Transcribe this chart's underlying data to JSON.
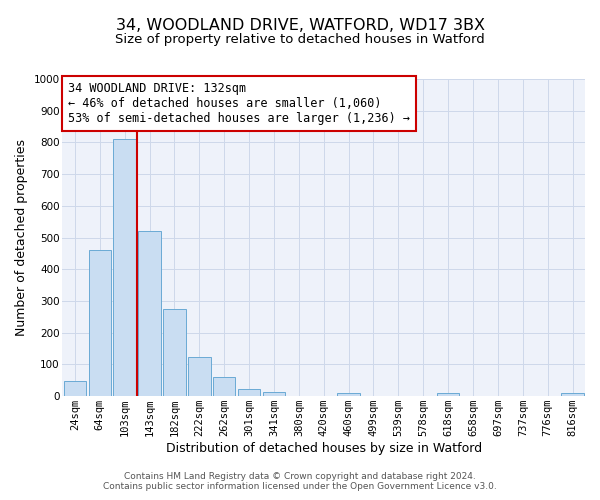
{
  "title": "34, WOODLAND DRIVE, WATFORD, WD17 3BX",
  "subtitle": "Size of property relative to detached houses in Watford",
  "xlabel": "Distribution of detached houses by size in Watford",
  "ylabel": "Number of detached properties",
  "bar_labels": [
    "24sqm",
    "64sqm",
    "103sqm",
    "143sqm",
    "182sqm",
    "222sqm",
    "262sqm",
    "301sqm",
    "341sqm",
    "380sqm",
    "420sqm",
    "460sqm",
    "499sqm",
    "539sqm",
    "578sqm",
    "618sqm",
    "658sqm",
    "697sqm",
    "737sqm",
    "776sqm",
    "816sqm"
  ],
  "bar_values": [
    47,
    460,
    810,
    520,
    275,
    125,
    60,
    22,
    12,
    0,
    0,
    10,
    0,
    0,
    0,
    10,
    0,
    0,
    0,
    0,
    10
  ],
  "bar_color": "#c9ddf2",
  "bar_edge_color": "#6aaad4",
  "grid_color": "#cdd8ea",
  "background_color": "#eef2fa",
  "vline_color": "#cc0000",
  "vline_pos": 2.5,
  "ylim": [
    0,
    1000
  ],
  "yticks": [
    0,
    100,
    200,
    300,
    400,
    500,
    600,
    700,
    800,
    900,
    1000
  ],
  "annotation_title": "34 WOODLAND DRIVE: 132sqm",
  "annotation_line1": "← 46% of detached houses are smaller (1,060)",
  "annotation_line2": "53% of semi-detached houses are larger (1,236) →",
  "footer_line1": "Contains HM Land Registry data © Crown copyright and database right 2024.",
  "footer_line2": "Contains public sector information licensed under the Open Government Licence v3.0.",
  "title_fontsize": 11.5,
  "subtitle_fontsize": 9.5,
  "axis_label_fontsize": 9,
  "tick_fontsize": 7.5,
  "annotation_fontsize": 8.5,
  "footer_fontsize": 6.5
}
